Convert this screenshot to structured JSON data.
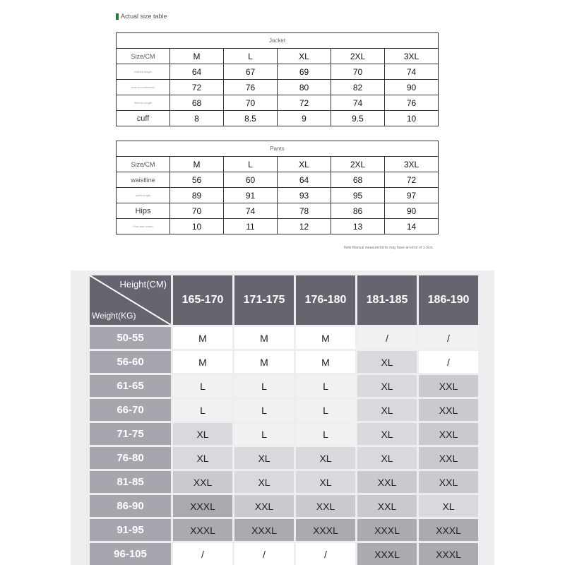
{
  "heading": "Actual size table",
  "jacket": {
    "title": "Jacket",
    "columns": [
      "Size/CM",
      "M",
      "L",
      "XL",
      "2XL",
      "3XL"
    ],
    "rows": [
      {
        "label": "clothes length",
        "values": [
          "64",
          "67",
          "69",
          "70",
          "74"
        ]
      },
      {
        "label": "bust circumference",
        "values": [
          "72",
          "76",
          "80",
          "82",
          "90"
        ]
      },
      {
        "label": "Sleeve Length",
        "values": [
          "68",
          "70",
          "72",
          "74",
          "76"
        ]
      },
      {
        "label": "cuff",
        "values": [
          "8",
          "8.5",
          "9",
          "9.5",
          "10"
        ]
      }
    ]
  },
  "pants": {
    "title": "Pants",
    "columns": [
      "Size/CM",
      "M",
      "L",
      "XL",
      "2XL",
      "3XL"
    ],
    "rows": [
      {
        "label": "waistline",
        "values": [
          "56",
          "60",
          "64",
          "68",
          "72"
        ]
      },
      {
        "label": "pants length",
        "values": [
          "89",
          "91",
          "93",
          "95",
          "97"
        ]
      },
      {
        "label": "Hips",
        "values": [
          "70",
          "74",
          "78",
          "86",
          "90"
        ]
      },
      {
        "label": "Foot and mouth",
        "values": [
          "10",
          "11",
          "12",
          "13",
          "14"
        ]
      }
    ]
  },
  "note": "Note:Manual measurements may have an error of 1-3cm.",
  "chart": {
    "height_label": "Height(CM)",
    "weight_label": "Weight(KG)",
    "heights": [
      "165-170",
      "171-175",
      "176-180",
      "181-185",
      "186-190"
    ],
    "rows": [
      {
        "weight": "50-55",
        "sizes": [
          "M",
          "M",
          "M",
          "/",
          "/"
        ]
      },
      {
        "weight": "56-60",
        "sizes": [
          "M",
          "M",
          "M",
          "XL",
          "/"
        ]
      },
      {
        "weight": "61-65",
        "sizes": [
          "L",
          "L",
          "L",
          "XL",
          "XXL"
        ]
      },
      {
        "weight": "66-70",
        "sizes": [
          "L",
          "L",
          "L",
          "XL",
          "XXL"
        ]
      },
      {
        "weight": "71-75",
        "sizes": [
          "XL",
          "L",
          "L",
          "XL",
          "XXL"
        ]
      },
      {
        "weight": "76-80",
        "sizes": [
          "XL",
          "XL",
          "XL",
          "XL",
          "XXL"
        ]
      },
      {
        "weight": "81-85",
        "sizes": [
          "XXL",
          "XL",
          "XL",
          "XXL",
          "XXL"
        ]
      },
      {
        "weight": "86-90",
        "sizes": [
          "XXXL",
          "XXL",
          "XXL",
          "XXL",
          "XL"
        ]
      },
      {
        "weight": "91-95",
        "sizes": [
          "XXXL",
          "XXXL",
          "XXXL",
          "XXXL",
          "XXXL"
        ]
      },
      {
        "weight": "96-105",
        "sizes": [
          "/",
          "/",
          "/",
          "XXXL",
          "XXXL"
        ]
      }
    ],
    "colors": {
      "M": "#ffffff",
      "L": "#f1f1f1",
      "XL": "#d9d8dd",
      "XXL": "#cac9ce",
      "XXXL": "#abaab0",
      "slash_light": "#f1f1f1",
      "slash_white": "#ffffff"
    }
  }
}
